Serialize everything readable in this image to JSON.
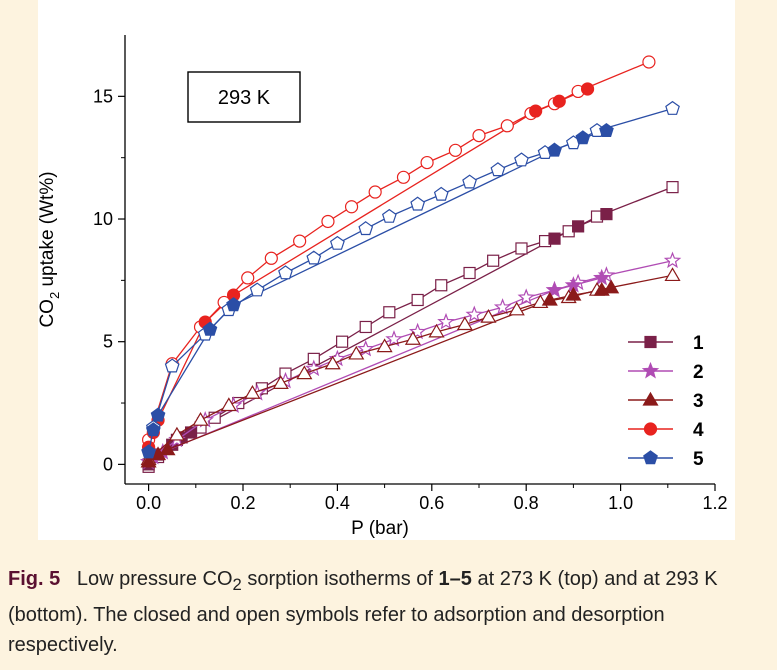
{
  "chart_data": {
    "type": "scatter",
    "inset_label": "293 K",
    "xlabel": "P (bar)",
    "ylabel_main": "CO",
    "ylabel_sub": "2",
    "ylabel_rest": " uptake (Wt%)",
    "xlim": [
      -0.05,
      1.2
    ],
    "ylim": [
      -0.8,
      17.5
    ],
    "x_ticks": [
      0.0,
      0.2,
      0.4,
      0.6,
      0.8,
      1.0,
      1.2
    ],
    "x_tick_labels": [
      "0.0",
      "0.2",
      "0.4",
      "0.6",
      "0.8",
      "1.0",
      "1.2"
    ],
    "y_ticks": [
      0,
      5,
      10,
      15
    ],
    "y_tick_labels": [
      "0",
      "5",
      "10",
      "15"
    ],
    "legend_position": "bottom-right",
    "series": [
      {
        "name": "1",
        "color": "#7a2048",
        "marker": "square",
        "adsorption": [
          [
            0.0,
            0.0
          ],
          [
            0.02,
            0.4
          ],
          [
            0.05,
            0.8
          ],
          [
            0.07,
            1.1
          ],
          [
            0.09,
            1.3
          ],
          [
            0.86,
            9.2
          ],
          [
            0.91,
            9.7
          ],
          [
            0.97,
            10.2
          ]
        ],
        "desorption": [
          [
            1.11,
            11.3
          ],
          [
            0.95,
            10.1
          ],
          [
            0.89,
            9.5
          ],
          [
            0.84,
            9.1
          ],
          [
            0.79,
            8.8
          ],
          [
            0.73,
            8.3
          ],
          [
            0.68,
            7.8
          ],
          [
            0.62,
            7.3
          ],
          [
            0.57,
            6.7
          ],
          [
            0.51,
            6.2
          ],
          [
            0.46,
            5.6
          ],
          [
            0.41,
            5.0
          ],
          [
            0.35,
            4.3
          ],
          [
            0.29,
            3.7
          ],
          [
            0.24,
            3.1
          ],
          [
            0.19,
            2.5
          ],
          [
            0.14,
            1.9
          ],
          [
            0.11,
            1.5
          ],
          [
            0.06,
            1.0
          ],
          [
            0.02,
            0.3
          ],
          [
            0.0,
            -0.1
          ]
        ]
      },
      {
        "name": "2",
        "color": "#b04cb4",
        "marker": "star",
        "adsorption": [
          [
            0.01,
            0.3
          ],
          [
            0.03,
            0.5
          ],
          [
            0.86,
            7.1
          ],
          [
            0.9,
            7.3
          ],
          [
            0.96,
            7.6
          ]
        ],
        "desorption": [
          [
            1.11,
            8.3
          ],
          [
            0.97,
            7.7
          ],
          [
            0.91,
            7.4
          ],
          [
            0.86,
            7.1
          ],
          [
            0.8,
            6.8
          ],
          [
            0.75,
            6.4
          ],
          [
            0.69,
            6.1
          ],
          [
            0.63,
            5.8
          ],
          [
            0.57,
            5.4
          ],
          [
            0.52,
            5.1
          ],
          [
            0.46,
            4.7
          ],
          [
            0.4,
            4.3
          ],
          [
            0.35,
            3.9
          ],
          [
            0.29,
            3.4
          ],
          [
            0.23,
            2.9
          ],
          [
            0.18,
            2.4
          ],
          [
            0.12,
            1.8
          ],
          [
            0.06,
            1.0
          ],
          [
            0.0,
            0.1
          ]
        ]
      },
      {
        "name": "3",
        "color": "#8b1a1a",
        "marker": "triangle",
        "adsorption": [
          [
            0.0,
            0.1
          ],
          [
            0.02,
            0.4
          ],
          [
            0.04,
            0.6
          ],
          [
            0.85,
            6.7
          ],
          [
            0.9,
            6.9
          ],
          [
            0.96,
            7.1
          ],
          [
            0.98,
            7.2
          ]
        ],
        "desorption": [
          [
            1.11,
            7.7
          ],
          [
            0.95,
            7.1
          ],
          [
            0.89,
            6.8
          ],
          [
            0.83,
            6.6
          ],
          [
            0.78,
            6.3
          ],
          [
            0.72,
            6.0
          ],
          [
            0.67,
            5.7
          ],
          [
            0.61,
            5.4
          ],
          [
            0.56,
            5.1
          ],
          [
            0.5,
            4.8
          ],
          [
            0.44,
            4.5
          ],
          [
            0.39,
            4.1
          ],
          [
            0.33,
            3.7
          ],
          [
            0.28,
            3.3
          ],
          [
            0.22,
            2.9
          ],
          [
            0.17,
            2.4
          ],
          [
            0.11,
            1.8
          ],
          [
            0.06,
            1.2
          ],
          [
            0.0,
            0.2
          ]
        ]
      },
      {
        "name": "4",
        "color": "#e8231f",
        "marker": "circle",
        "adsorption": [
          [
            0.0,
            0.7
          ],
          [
            0.01,
            1.3
          ],
          [
            0.02,
            1.8
          ],
          [
            0.12,
            5.8
          ],
          [
            0.18,
            6.9
          ],
          [
            0.82,
            14.4
          ],
          [
            0.87,
            14.8
          ],
          [
            0.93,
            15.3
          ]
        ],
        "desorption": [
          [
            1.06,
            16.4
          ],
          [
            0.91,
            15.2
          ],
          [
            0.86,
            14.7
          ],
          [
            0.81,
            14.3
          ],
          [
            0.76,
            13.8
          ],
          [
            0.7,
            13.4
          ],
          [
            0.65,
            12.8
          ],
          [
            0.59,
            12.3
          ],
          [
            0.54,
            11.7
          ],
          [
            0.48,
            11.1
          ],
          [
            0.43,
            10.5
          ],
          [
            0.38,
            9.9
          ],
          [
            0.32,
            9.1
          ],
          [
            0.26,
            8.4
          ],
          [
            0.21,
            7.6
          ],
          [
            0.16,
            6.6
          ],
          [
            0.11,
            5.6
          ],
          [
            0.05,
            4.1
          ],
          [
            0.0,
            1.0
          ]
        ]
      },
      {
        "name": "5",
        "color": "#2b4ea6",
        "marker": "pentagon",
        "adsorption": [
          [
            0.0,
            0.5
          ],
          [
            0.01,
            1.4
          ],
          [
            0.02,
            2.0
          ],
          [
            0.13,
            5.5
          ],
          [
            0.18,
            6.5
          ],
          [
            0.86,
            12.8
          ],
          [
            0.92,
            13.3
          ],
          [
            0.97,
            13.6
          ]
        ],
        "desorption": [
          [
            1.11,
            14.5
          ],
          [
            0.95,
            13.6
          ],
          [
            0.9,
            13.1
          ],
          [
            0.84,
            12.7
          ],
          [
            0.79,
            12.4
          ],
          [
            0.74,
            12.0
          ],
          [
            0.68,
            11.5
          ],
          [
            0.62,
            11.0
          ],
          [
            0.57,
            10.6
          ],
          [
            0.51,
            10.1
          ],
          [
            0.46,
            9.6
          ],
          [
            0.4,
            9.0
          ],
          [
            0.35,
            8.4
          ],
          [
            0.29,
            7.8
          ],
          [
            0.23,
            7.1
          ],
          [
            0.17,
            6.3
          ],
          [
            0.12,
            5.3
          ],
          [
            0.05,
            4.0
          ],
          [
            0.01,
            1.5
          ]
        ]
      }
    ]
  },
  "caption": {
    "fig_label": "Fig. 5",
    "t1": "Low pressure CO",
    "t1_sub": "2",
    "t2": " sorption isotherms of ",
    "t2_bold": "1–5",
    "t3": " at 273 K (top) and at 293 K (bottom). The closed and open symbols refer to adsorption and desorption respectively."
  }
}
